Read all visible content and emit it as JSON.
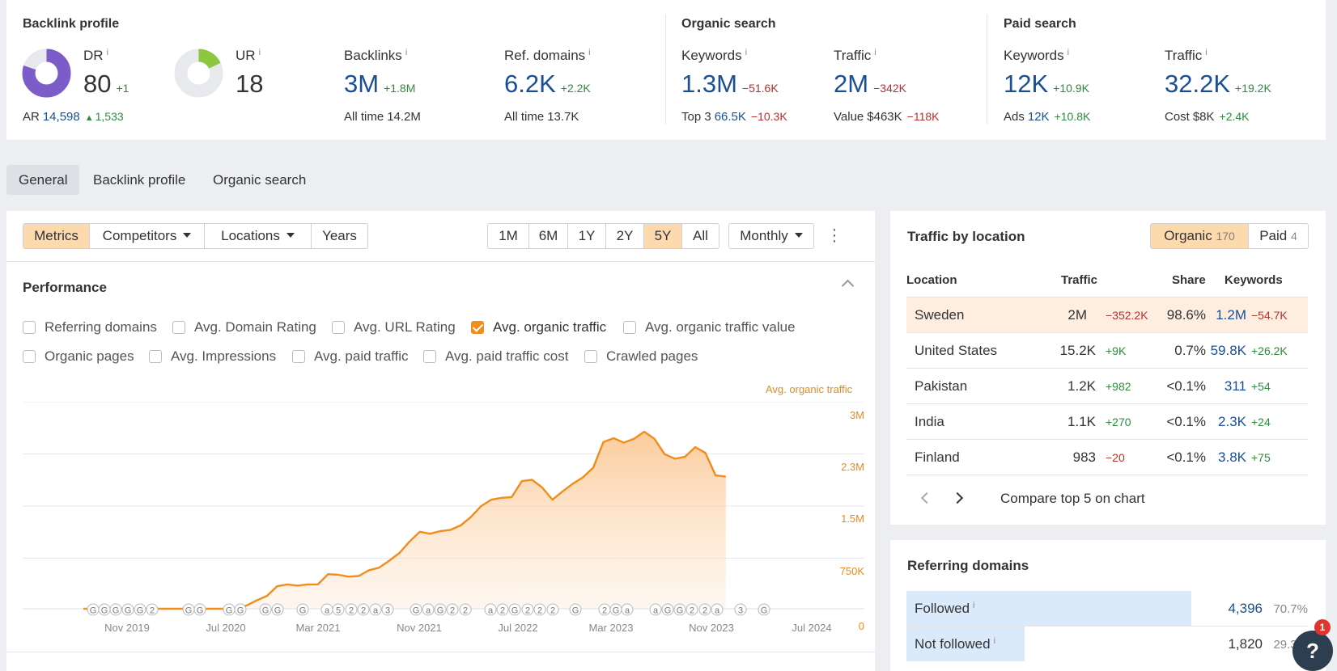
{
  "colors": {
    "accent": "#f28c1b",
    "link_blue": "#1a4f94",
    "positive": "#2f8a3f",
    "negative": "#b5302e",
    "dr_purple": "#7b5cc9",
    "ur_green": "#8dc63f"
  },
  "backlink_profile": {
    "title": "Backlink profile",
    "dr": {
      "label": "DR",
      "info": "i",
      "value": "80",
      "delta": "+1",
      "score": 80
    },
    "ur": {
      "label": "UR",
      "info": "i",
      "value": "18",
      "score": 18
    },
    "ar": {
      "label": "AR",
      "value": "14,598",
      "delta": "1,533"
    },
    "backlinks": {
      "label": "Backlinks",
      "info": "i",
      "value": "3M",
      "delta": "+1.8M",
      "sub_label": "All time",
      "sub_value": "14.2M"
    },
    "ref_domains": {
      "label": "Ref. domains",
      "info": "i",
      "value": "6.2K",
      "delta": "+2.2K",
      "sub_label": "All time",
      "sub_value": "13.7K"
    }
  },
  "organic_search": {
    "title": "Organic search",
    "keywords": {
      "label": "Keywords",
      "info": "i",
      "value": "1.3M",
      "delta": "−51.6K",
      "sub_label": "Top 3",
      "sub_value": "66.5K",
      "sub_delta": "−10.3K"
    },
    "traffic": {
      "label": "Traffic",
      "info": "i",
      "value": "2M",
      "delta": "−342K",
      "sub_label": "Value",
      "sub_value": "$463K",
      "sub_delta": "−118K"
    }
  },
  "paid_search": {
    "title": "Paid search",
    "keywords": {
      "label": "Keywords",
      "info": "i",
      "value": "12K",
      "delta": "+10.9K",
      "sub_label": "Ads",
      "sub_value": "12K",
      "sub_delta": "+10.8K"
    },
    "traffic": {
      "label": "Traffic",
      "info": "i",
      "value": "32.2K",
      "delta": "+19.2K",
      "sub_label": "Cost",
      "sub_value": "$8K",
      "sub_delta": "+2.4K"
    }
  },
  "tabs": [
    "General",
    "Backlink profile",
    "Organic search"
  ],
  "toolbar": {
    "metrics": "Metrics",
    "competitors": "Competitors",
    "locations": "Locations",
    "years": "Years",
    "ranges": [
      "1M",
      "6M",
      "1Y",
      "2Y",
      "5Y",
      "All"
    ],
    "active_range": "5Y",
    "interval": "Monthly"
  },
  "performance": {
    "title": "Performance",
    "checkboxes_row1": [
      {
        "label": "Referring domains",
        "checked": false
      },
      {
        "label": "Avg. Domain Rating",
        "checked": false
      },
      {
        "label": "Avg. URL Rating",
        "checked": false
      },
      {
        "label": "Avg. organic traffic",
        "checked": true
      },
      {
        "label": "Avg. organic traffic value",
        "checked": false
      }
    ],
    "checkboxes_row2": [
      {
        "label": "Organic pages",
        "checked": false
      },
      {
        "label": "Avg. Impressions",
        "checked": false
      },
      {
        "label": "Avg. paid traffic",
        "checked": false
      },
      {
        "label": "Avg. paid traffic cost",
        "checked": false
      },
      {
        "label": "Crawled pages",
        "checked": false
      }
    ]
  },
  "chart_data": {
    "type": "area",
    "series": [
      {
        "name": "Avg. organic traffic",
        "values": [
          0,
          0,
          0,
          0,
          0,
          0,
          0,
          0,
          0,
          0,
          0,
          0,
          0,
          0,
          0,
          0,
          50000,
          130000,
          200000,
          350000,
          380000,
          360000,
          380000,
          380000,
          540000,
          530000,
          500000,
          510000,
          600000,
          640000,
          750000,
          870000,
          1050000,
          1200000,
          1170000,
          1210000,
          1230000,
          1300000,
          1430000,
          1600000,
          1700000,
          1730000,
          1740000,
          1990000,
          2010000,
          1890000,
          1700000,
          1830000,
          1950000,
          2050000,
          2200000,
          2600000,
          2660000,
          2590000,
          2650000,
          2760000,
          2650000,
          2410000,
          2340000,
          2370000,
          2520000,
          2430000,
          2080000,
          2060000
        ]
      }
    ],
    "x_start": "2019-09",
    "x_step": "month",
    "ylabel": "Avg. organic traffic",
    "ylim": [
      0,
      3000000
    ],
    "yticks": [
      "3M",
      "2.3M",
      "1.5M",
      "750K",
      "0"
    ],
    "xticks": [
      "Nov 2019",
      "Jul 2020",
      "Mar 2021",
      "Nov 2021",
      "Jul 2022",
      "Mar 2023",
      "Nov 2023",
      "Jul 2024"
    ],
    "grid": true,
    "annotation_markers": [
      "G",
      "G",
      "G",
      "G",
      "G",
      "2",
      "G",
      "G",
      "G",
      "G",
      "G",
      "G",
      "G",
      "a",
      "5",
      "2",
      "2",
      "a",
      "3",
      "G",
      "a",
      "G",
      "2",
      "2",
      "a",
      "2",
      "G",
      "2",
      "2",
      "2",
      "G",
      "2",
      "G",
      "a",
      "a",
      "G",
      "G",
      "2",
      "2",
      "a",
      "3",
      "G"
    ]
  },
  "traffic_by_location": {
    "title": "Traffic by location",
    "organic": {
      "label": "Organic",
      "count": "170"
    },
    "paid": {
      "label": "Paid",
      "count": "4"
    },
    "columns": [
      "Location",
      "Traffic",
      "Share",
      "Keywords"
    ],
    "rows": [
      {
        "location": "Sweden",
        "traffic": "2M",
        "traffic_delta": "−352.2K",
        "share": "98.6%",
        "keywords": "1.2M",
        "keywords_delta": "−54.7K"
      },
      {
        "location": "United States",
        "traffic": "15.2K",
        "traffic_delta": "+9K",
        "share": "0.7%",
        "keywords": "59.8K",
        "keywords_delta": "+26.2K"
      },
      {
        "location": "Pakistan",
        "traffic": "1.2K",
        "traffic_delta": "+982",
        "share": "<0.1%",
        "keywords": "311",
        "keywords_delta": "+54"
      },
      {
        "location": "India",
        "traffic": "1.1K",
        "traffic_delta": "+270",
        "share": "<0.1%",
        "keywords": "2.3K",
        "keywords_delta": "+24"
      },
      {
        "location": "Finland",
        "traffic": "983",
        "traffic_delta": "−20",
        "share": "<0.1%",
        "keywords": "3.8K",
        "keywords_delta": "+75"
      }
    ],
    "compare_label": "Compare top 5 on chart"
  },
  "referring_domains": {
    "title": "Referring domains",
    "rows": [
      {
        "label": "Followed",
        "info": "i",
        "value": "4,396",
        "percent": "70.7%",
        "fraction": 0.707
      },
      {
        "label": "Not followed",
        "info": "i",
        "value": "1,820",
        "percent": "29.3%",
        "fraction": 0.293
      }
    ]
  },
  "help": {
    "label": "?",
    "badge": "1"
  }
}
